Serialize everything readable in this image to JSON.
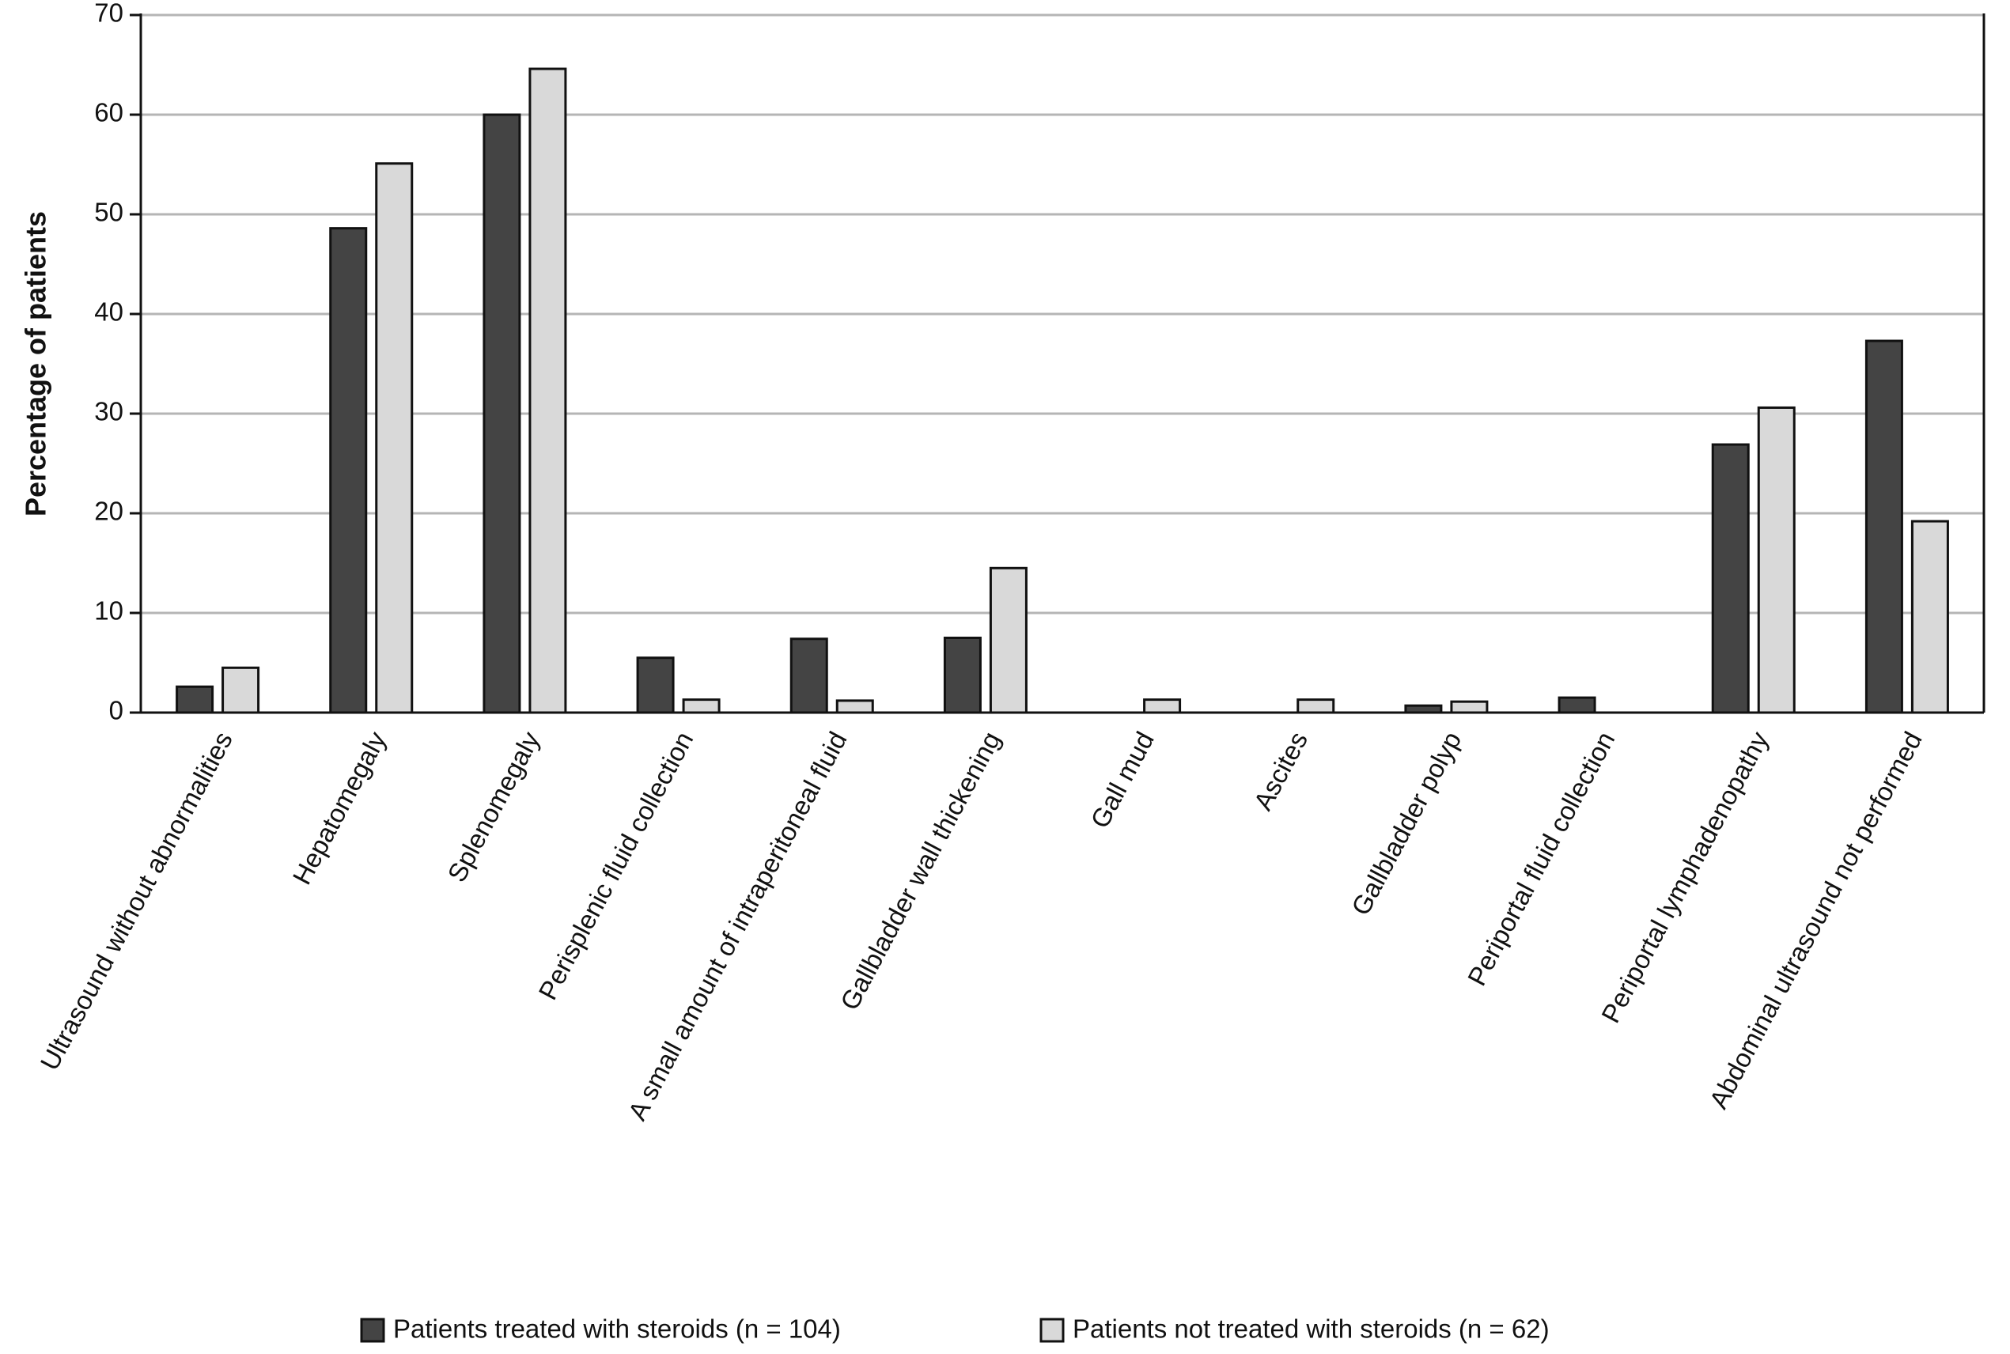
{
  "chart_data": {
    "type": "bar",
    "y_label": "Percentage of patients",
    "categories": [
      "Ultrasound without abnormalities",
      "Hepatomegaly",
      "Splenomegaly",
      "Perisplenic fluid collection",
      "A small amount of intraperitoneal fluid",
      "Gallbladder wall thickening",
      "Gall mud",
      "Ascites",
      "Gallbladder polyp",
      "Periportal fluid collection",
      "Periportal lymphadenopathy",
      "Abdominal ultrasound not performed"
    ],
    "series": [
      {
        "name": "Patients treated with steroids (n = 104)",
        "color": "#444444",
        "values": [
          2.6,
          48.6,
          60,
          5.5,
          7.4,
          7.5,
          0,
          0,
          0.7,
          1.5,
          26.9,
          37.3
        ]
      },
      {
        "name": "Patients not treated with steroids (n = 62)",
        "color": "#d9d9d9",
        "values": [
          4.5,
          55.1,
          64.6,
          1.3,
          1.2,
          14.5,
          1.3,
          1.3,
          1.1,
          0,
          30.6,
          19.2
        ]
      }
    ],
    "ylim": [
      0,
      70
    ],
    "yticks": [
      0,
      10,
      20,
      30,
      40,
      50,
      60,
      70
    ],
    "grid": true
  }
}
